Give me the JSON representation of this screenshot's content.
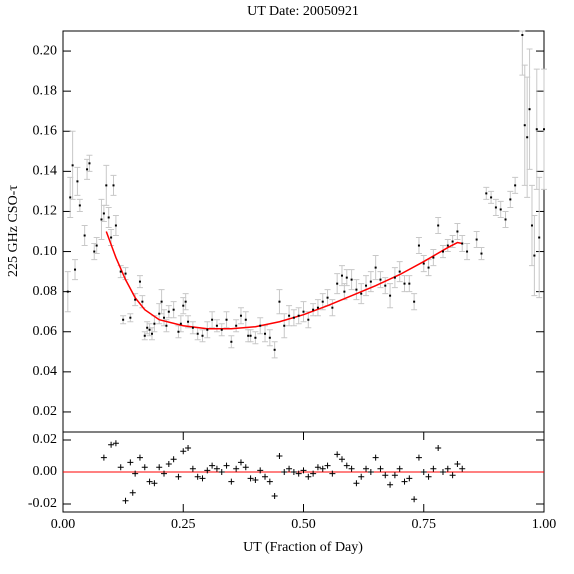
{
  "chart_data": [
    {
      "type": "scatter",
      "title": "UT Date: 20050921",
      "y_label": "225 GHz CSO-τ",
      "xlim": [
        0,
        1
      ],
      "ylim": [
        0.01,
        0.21
      ],
      "yticks": [
        0.02,
        0.04,
        0.06,
        0.08,
        {
          "value": 0.1,
          "label": "0.10"
        },
        0.12,
        0.14,
        0.16,
        0.18,
        {
          "value": 0.2,
          "label": "0.20"
        }
      ],
      "color": "#000000",
      "error_color": "#c8c8c8",
      "x": [
        0.01,
        0.015,
        0.02,
        0.025,
        0.03,
        0.035,
        0.045,
        0.05,
        0.055,
        0.065,
        0.07,
        0.08,
        0.085,
        0.09,
        0.095,
        0.1,
        0.105,
        0.11,
        0.12,
        0.125,
        0.13,
        0.14,
        0.15,
        0.16,
        0.165,
        0.17,
        0.175,
        0.18,
        0.185,
        0.19,
        0.2,
        0.205,
        0.21,
        0.215,
        0.22,
        0.23,
        0.24,
        0.245,
        0.25,
        0.255,
        0.26,
        0.27,
        0.28,
        0.29,
        0.3,
        0.31,
        0.32,
        0.33,
        0.34,
        0.35,
        0.36,
        0.37,
        0.38,
        0.385,
        0.39,
        0.4,
        0.41,
        0.42,
        0.43,
        0.44,
        0.45,
        0.46,
        0.47,
        0.48,
        0.49,
        0.5,
        0.51,
        0.52,
        0.53,
        0.54,
        0.55,
        0.56,
        0.57,
        0.58,
        0.585,
        0.59,
        0.6,
        0.61,
        0.62,
        0.63,
        0.64,
        0.65,
        0.66,
        0.67,
        0.68,
        0.69,
        0.7,
        0.71,
        0.72,
        0.73,
        0.74,
        0.75,
        0.76,
        0.77,
        0.78,
        0.79,
        0.8,
        0.81,
        0.82,
        0.83,
        0.84,
        0.86,
        0.87,
        0.88,
        0.89,
        0.9,
        0.91,
        0.92,
        0.93,
        0.94,
        0.955,
        0.96,
        0.965,
        0.97,
        0.975,
        0.98,
        0.985,
        0.99,
        1.0
      ],
      "values": [
        0.08,
        0.127,
        0.143,
        0.091,
        0.135,
        0.123,
        0.108,
        0.141,
        0.144,
        0.1,
        0.103,
        0.116,
        0.119,
        0.133,
        0.117,
        0.107,
        0.133,
        0.113,
        0.09,
        0.066,
        0.089,
        0.067,
        0.076,
        0.085,
        0.075,
        0.058,
        0.062,
        0.061,
        0.059,
        0.064,
        0.069,
        0.075,
        0.067,
        0.063,
        0.07,
        0.071,
        0.06,
        0.064,
        0.073,
        0.075,
        0.065,
        0.062,
        0.059,
        0.058,
        0.061,
        0.066,
        0.063,
        0.061,
        0.066,
        0.055,
        0.063,
        0.068,
        0.066,
        0.058,
        0.058,
        0.057,
        0.063,
        0.059,
        0.057,
        0.051,
        0.075,
        0.063,
        0.068,
        0.067,
        0.068,
        0.07,
        0.066,
        0.071,
        0.072,
        0.075,
        0.077,
        0.072,
        0.084,
        0.088,
        0.08,
        0.087,
        0.086,
        0.081,
        0.079,
        0.083,
        0.085,
        0.092,
        0.086,
        0.083,
        0.078,
        0.087,
        0.09,
        0.084,
        0.084,
        0.075,
        0.103,
        0.094,
        0.092,
        0.097,
        0.113,
        0.1,
        0.103,
        0.105,
        0.11,
        0.104,
        0.1,
        0.106,
        0.099,
        0.129,
        0.127,
        0.122,
        0.121,
        0.116,
        0.126,
        0.133,
        0.208,
        0.163,
        0.157,
        0.171,
        0.113,
        0.098,
        0.161,
        0.107,
        0.161
      ],
      "errors": [
        0.01,
        0.01,
        0.017,
        0.005,
        0.007,
        0.003,
        0.005,
        0.005,
        0.004,
        0.004,
        0.004,
        0.01,
        0.004,
        0.01,
        0.005,
        0.004,
        0.005,
        0.005,
        0.003,
        0.002,
        0.003,
        0.002,
        0.003,
        0.003,
        0.003,
        0.002,
        0.003,
        0.003,
        0.003,
        0.004,
        0.005,
        0.006,
        0.004,
        0.003,
        0.003,
        0.004,
        0.003,
        0.004,
        0.004,
        0.004,
        0.003,
        0.003,
        0.003,
        0.003,
        0.004,
        0.004,
        0.003,
        0.003,
        0.004,
        0.003,
        0.003,
        0.004,
        0.004,
        0.003,
        0.003,
        0.003,
        0.004,
        0.004,
        0.004,
        0.004,
        0.006,
        0.006,
        0.005,
        0.004,
        0.004,
        0.005,
        0.004,
        0.003,
        0.004,
        0.004,
        0.004,
        0.004,
        0.005,
        0.005,
        0.004,
        0.004,
        0.005,
        0.005,
        0.005,
        0.005,
        0.005,
        0.006,
        0.004,
        0.004,
        0.006,
        0.005,
        0.005,
        0.004,
        0.004,
        0.004,
        0.004,
        0.004,
        0.004,
        0.004,
        0.004,
        0.003,
        0.003,
        0.003,
        0.004,
        0.004,
        0.004,
        0.004,
        0.003,
        0.003,
        0.003,
        0.004,
        0.004,
        0.004,
        0.004,
        0.004,
        0.02,
        0.03,
        0.03,
        0.03,
        0.02,
        0.02,
        0.03,
        0.03,
        0.03
      ],
      "fit": {
        "color": "#ff0000",
        "x": [
          0.09,
          0.11,
          0.13,
          0.15,
          0.17,
          0.2,
          0.25,
          0.3,
          0.35,
          0.4,
          0.45,
          0.5,
          0.55,
          0.6,
          0.65,
          0.7,
          0.75,
          0.8,
          0.82,
          0.83
        ],
        "values": [
          0.11,
          0.097,
          0.086,
          0.077,
          0.071,
          0.066,
          0.063,
          0.0615,
          0.0615,
          0.0625,
          0.065,
          0.0685,
          0.073,
          0.078,
          0.083,
          0.0885,
          0.095,
          0.102,
          0.1045,
          0.104
        ]
      }
    },
    {
      "type": "scatter",
      "x_label": "UT (Fraction of Day)",
      "xlim": [
        0,
        1
      ],
      "ylim": [
        -0.025,
        0.025
      ],
      "xticks": [
        {
          "value": 0,
          "label": "0.00"
        },
        0.25,
        {
          "value": 0.5,
          "label": "0.50"
        },
        0.75,
        {
          "value": 1,
          "label": "1.00"
        }
      ],
      "yticks": [
        -0.02,
        {
          "value": 0,
          "label": "0.00"
        },
        0.02
      ],
      "color": "#000000",
      "reference_line": {
        "value": 0,
        "color": "#ff0000"
      },
      "x": [
        0.085,
        0.1,
        0.11,
        0.12,
        0.13,
        0.14,
        0.145,
        0.15,
        0.16,
        0.17,
        0.18,
        0.19,
        0.2,
        0.21,
        0.22,
        0.23,
        0.24,
        0.25,
        0.26,
        0.27,
        0.28,
        0.29,
        0.3,
        0.31,
        0.32,
        0.33,
        0.34,
        0.35,
        0.36,
        0.37,
        0.38,
        0.39,
        0.4,
        0.41,
        0.42,
        0.43,
        0.44,
        0.45,
        0.46,
        0.47,
        0.48,
        0.49,
        0.5,
        0.51,
        0.52,
        0.53,
        0.54,
        0.55,
        0.56,
        0.57,
        0.58,
        0.59,
        0.6,
        0.61,
        0.62,
        0.63,
        0.64,
        0.65,
        0.66,
        0.67,
        0.68,
        0.69,
        0.7,
        0.71,
        0.72,
        0.73,
        0.74,
        0.75,
        0.76,
        0.77,
        0.78,
        0.79,
        0.8,
        0.81,
        0.82,
        0.83
      ],
      "values": [
        0.009,
        0.017,
        0.018,
        0.003,
        -0.018,
        0.006,
        -0.013,
        -0.001,
        0.009,
        0.003,
        -0.006,
        -0.007,
        0.003,
        -0.001,
        0.005,
        0.008,
        -0.003,
        0.013,
        0.015,
        0.002,
        -0.003,
        -0.004,
        0.001,
        0.004,
        0.002,
        0.0,
        0.004,
        -0.006,
        0.002,
        0.006,
        0.003,
        -0.004,
        -0.005,
        0.001,
        -0.003,
        -0.006,
        -0.015,
        0.01,
        0.0,
        0.002,
        0.0,
        -0.001,
        0.001,
        -0.003,
        -0.001,
        0.003,
        0.002,
        0.004,
        -0.001,
        0.011,
        0.008,
        0.004,
        0.002,
        -0.007,
        -0.003,
        0.002,
        0.0,
        0.009,
        0.002,
        -0.002,
        -0.008,
        -0.002,
        0.002,
        -0.006,
        -0.004,
        -0.017,
        0.009,
        0.0,
        -0.003,
        0.002,
        0.015,
        0.0,
        0.002,
        -0.002,
        0.005,
        0.002
      ]
    }
  ]
}
